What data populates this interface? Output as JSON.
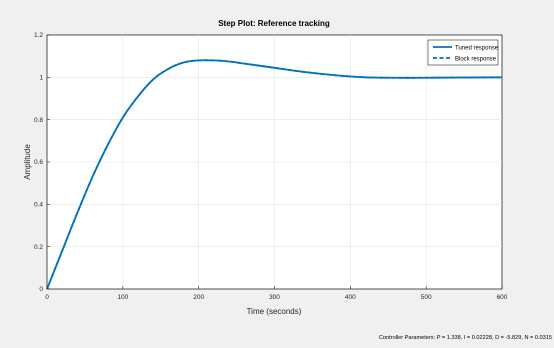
{
  "chart_data": {
    "type": "line",
    "title": "Step Plot: Reference tracking",
    "xlabel": "Time (seconds)",
    "ylabel": "Amplitude",
    "xlim": [
      0,
      600
    ],
    "ylim": [
      0,
      1.2
    ],
    "xticks": [
      0,
      100,
      200,
      300,
      400,
      500,
      600
    ],
    "yticks": [
      0,
      0.2,
      0.4,
      0.6,
      0.8,
      1,
      1.2
    ],
    "grid": true,
    "legend_position": "top-right",
    "series": [
      {
        "name": "Tuned response",
        "color": "#0072bd",
        "style": "solid",
        "x": [
          0,
          20,
          40,
          60,
          80,
          100,
          120,
          140,
          160,
          180,
          200,
          220,
          240,
          260,
          280,
          300,
          340,
          380,
          420,
          460,
          500,
          540,
          600
        ],
        "y": [
          0,
          0.18,
          0.36,
          0.53,
          0.68,
          0.81,
          0.91,
          0.99,
          1.04,
          1.07,
          1.08,
          1.08,
          1.075,
          1.065,
          1.055,
          1.045,
          1.025,
          1.01,
          1.0,
          0.998,
          0.998,
          0.999,
          1.0
        ]
      },
      {
        "name": "Block response",
        "color": "#0072bd",
        "style": "dashed",
        "x": [
          0,
          20,
          40,
          60,
          80,
          100,
          120,
          140,
          160,
          180,
          200,
          220,
          240,
          260,
          280,
          300,
          340,
          380,
          420,
          460,
          500,
          540,
          600
        ],
        "y": [
          0,
          0.18,
          0.36,
          0.53,
          0.68,
          0.81,
          0.91,
          0.99,
          1.04,
          1.07,
          1.08,
          1.08,
          1.075,
          1.065,
          1.055,
          1.045,
          1.025,
          1.01,
          1.0,
          0.998,
          0.998,
          0.999,
          1.0
        ]
      }
    ]
  },
  "footer": {
    "controller_params": "Controller Parameters: P = 1.338, I = 0.02228, D = -5.829, N = 0.0315"
  }
}
